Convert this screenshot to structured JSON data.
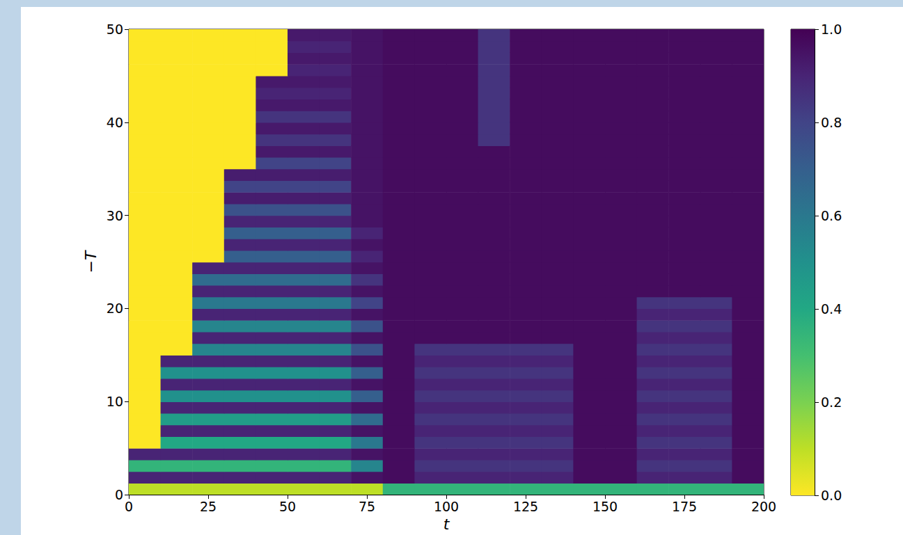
{
  "chart_data": {
    "type": "heatmap",
    "x_label": "t",
    "y_label": "−T",
    "x": [
      5,
      15,
      25,
      35,
      45,
      55,
      65,
      75,
      85,
      95,
      105,
      115,
      125,
      135,
      145,
      155,
      165,
      175,
      185,
      195
    ],
    "y": [
      0.625,
      1.875,
      3.125,
      4.375,
      5.625,
      6.875,
      8.125,
      9.375,
      10.625,
      11.875,
      13.125,
      14.375,
      15.625,
      16.875,
      18.125,
      19.375,
      20.625,
      21.875,
      23.125,
      24.375,
      25.625,
      26.875,
      28.125,
      29.375,
      30.625,
      31.875,
      33.125,
      34.375,
      35.625,
      36.875,
      38.125,
      39.375,
      40.625,
      41.875,
      43.125,
      44.375,
      45.625,
      46.875,
      48.125,
      49.375
    ],
    "values": [
      [
        0.1,
        0.1,
        0.1,
        0.1,
        0.1,
        0.1,
        0.1,
        0.1,
        0.35,
        0.35,
        0.35,
        0.35,
        0.35,
        0.35,
        0.35,
        0.35,
        0.35,
        0.35,
        0.35,
        0.35
      ],
      [
        0.9,
        0.9,
        0.9,
        0.9,
        0.9,
        0.9,
        0.9,
        0.95,
        0.97,
        0.9,
        0.9,
        0.9,
        0.9,
        0.9,
        0.97,
        0.97,
        0.9,
        0.9,
        0.9,
        0.97
      ],
      [
        0.35,
        0.35,
        0.35,
        0.35,
        0.35,
        0.35,
        0.35,
        0.55,
        0.97,
        0.85,
        0.85,
        0.85,
        0.85,
        0.85,
        0.97,
        0.97,
        0.85,
        0.85,
        0.85,
        0.97
      ],
      [
        0.9,
        0.9,
        0.9,
        0.9,
        0.9,
        0.9,
        0.9,
        0.95,
        0.97,
        0.9,
        0.9,
        0.9,
        0.9,
        0.9,
        0.97,
        0.97,
        0.9,
        0.9,
        0.9,
        0.97
      ],
      [
        0,
        0.4,
        0.4,
        0.4,
        0.4,
        0.4,
        0.4,
        0.6,
        0.97,
        0.85,
        0.85,
        0.85,
        0.85,
        0.85,
        0.97,
        0.97,
        0.85,
        0.85,
        0.85,
        0.97
      ],
      [
        0,
        0.9,
        0.9,
        0.9,
        0.9,
        0.9,
        0.9,
        0.95,
        0.97,
        0.9,
        0.9,
        0.9,
        0.9,
        0.9,
        0.97,
        0.97,
        0.9,
        0.9,
        0.9,
        0.97
      ],
      [
        0,
        0.45,
        0.45,
        0.45,
        0.45,
        0.45,
        0.45,
        0.65,
        0.97,
        0.85,
        0.85,
        0.85,
        0.85,
        0.85,
        0.97,
        0.97,
        0.85,
        0.85,
        0.85,
        0.97
      ],
      [
        0,
        0.9,
        0.9,
        0.9,
        0.9,
        0.9,
        0.9,
        0.95,
        0.97,
        0.9,
        0.9,
        0.9,
        0.9,
        0.9,
        0.97,
        0.97,
        0.9,
        0.9,
        0.9,
        0.97
      ],
      [
        0,
        0.5,
        0.5,
        0.5,
        0.5,
        0.5,
        0.5,
        0.7,
        0.97,
        0.85,
        0.85,
        0.85,
        0.85,
        0.85,
        0.97,
        0.97,
        0.85,
        0.85,
        0.85,
        0.97
      ],
      [
        0,
        0.9,
        0.9,
        0.9,
        0.9,
        0.9,
        0.9,
        0.95,
        0.97,
        0.9,
        0.9,
        0.9,
        0.9,
        0.9,
        0.97,
        0.97,
        0.9,
        0.9,
        0.9,
        0.97
      ],
      [
        0,
        0.5,
        0.5,
        0.5,
        0.5,
        0.5,
        0.5,
        0.7,
        0.97,
        0.85,
        0.85,
        0.85,
        0.85,
        0.85,
        0.97,
        0.97,
        0.85,
        0.85,
        0.85,
        0.97
      ],
      [
        0,
        0.9,
        0.9,
        0.9,
        0.9,
        0.9,
        0.9,
        0.95,
        0.97,
        0.9,
        0.9,
        0.9,
        0.9,
        0.9,
        0.97,
        0.97,
        0.9,
        0.9,
        0.9,
        0.97
      ],
      [
        0,
        0,
        0.55,
        0.55,
        0.55,
        0.55,
        0.55,
        0.75,
        0.97,
        0.85,
        0.85,
        0.85,
        0.85,
        0.85,
        0.97,
        0.97,
        0.85,
        0.85,
        0.85,
        0.97
      ],
      [
        0,
        0,
        0.9,
        0.9,
        0.9,
        0.9,
        0.9,
        0.95,
        0.97,
        0.97,
        0.97,
        0.97,
        0.97,
        0.97,
        0.97,
        0.97,
        0.9,
        0.9,
        0.9,
        0.97
      ],
      [
        0,
        0,
        0.55,
        0.55,
        0.55,
        0.55,
        0.55,
        0.75,
        0.97,
        0.97,
        0.97,
        0.97,
        0.97,
        0.97,
        0.97,
        0.97,
        0.85,
        0.85,
        0.85,
        0.97
      ],
      [
        0,
        0,
        0.9,
        0.9,
        0.9,
        0.9,
        0.9,
        0.95,
        0.97,
        0.97,
        0.97,
        0.97,
        0.97,
        0.97,
        0.97,
        0.97,
        0.9,
        0.9,
        0.9,
        0.97
      ],
      [
        0,
        0,
        0.6,
        0.6,
        0.6,
        0.6,
        0.6,
        0.8,
        0.97,
        0.97,
        0.97,
        0.97,
        0.97,
        0.97,
        0.97,
        0.97,
        0.85,
        0.85,
        0.85,
        0.97
      ],
      [
        0,
        0,
        0.9,
        0.9,
        0.9,
        0.9,
        0.9,
        0.95,
        0.97,
        0.97,
        0.97,
        0.97,
        0.97,
        0.97,
        0.97,
        0.97,
        0.97,
        0.97,
        0.97,
        0.97
      ],
      [
        0,
        0,
        0.65,
        0.65,
        0.65,
        0.65,
        0.65,
        0.85,
        0.97,
        0.97,
        0.97,
        0.97,
        0.97,
        0.97,
        0.97,
        0.97,
        0.97,
        0.97,
        0.97,
        0.97
      ],
      [
        0,
        0,
        0.9,
        0.9,
        0.9,
        0.9,
        0.9,
        0.95,
        0.97,
        0.97,
        0.97,
        0.97,
        0.97,
        0.97,
        0.97,
        0.97,
        0.97,
        0.97,
        0.97,
        0.97
      ],
      [
        0,
        0,
        0,
        0.7,
        0.7,
        0.7,
        0.7,
        0.9,
        0.97,
        0.97,
        0.97,
        0.97,
        0.97,
        0.97,
        0.97,
        0.97,
        0.97,
        0.97,
        0.97,
        0.97
      ],
      [
        0,
        0,
        0,
        0.9,
        0.9,
        0.9,
        0.9,
        0.95,
        0.97,
        0.97,
        0.97,
        0.97,
        0.97,
        0.97,
        0.97,
        0.97,
        0.97,
        0.97,
        0.97,
        0.97
      ],
      [
        0,
        0,
        0,
        0.7,
        0.7,
        0.7,
        0.7,
        0.9,
        0.97,
        0.97,
        0.97,
        0.97,
        0.97,
        0.97,
        0.97,
        0.97,
        0.97,
        0.97,
        0.97,
        0.97
      ],
      [
        0,
        0,
        0,
        0.9,
        0.9,
        0.9,
        0.9,
        0.95,
        0.97,
        0.97,
        0.97,
        0.97,
        0.97,
        0.97,
        0.97,
        0.97,
        0.97,
        0.97,
        0.97,
        0.97
      ],
      [
        0,
        0,
        0,
        0.75,
        0.75,
        0.75,
        0.75,
        0.95,
        0.97,
        0.97,
        0.97,
        0.97,
        0.97,
        0.97,
        0.97,
        0.97,
        0.97,
        0.97,
        0.97,
        0.97
      ],
      [
        0,
        0,
        0,
        0.92,
        0.92,
        0.92,
        0.92,
        0.95,
        0.97,
        0.97,
        0.97,
        0.97,
        0.97,
        0.97,
        0.97,
        0.97,
        0.97,
        0.97,
        0.97,
        0.97
      ],
      [
        0,
        0,
        0,
        0.8,
        0.8,
        0.8,
        0.8,
        0.95,
        0.97,
        0.97,
        0.97,
        0.97,
        0.97,
        0.97,
        0.97,
        0.97,
        0.97,
        0.97,
        0.97,
        0.97
      ],
      [
        0,
        0,
        0,
        0.92,
        0.92,
        0.92,
        0.92,
        0.95,
        0.97,
        0.97,
        0.97,
        0.97,
        0.97,
        0.97,
        0.97,
        0.97,
        0.97,
        0.97,
        0.97,
        0.97
      ],
      [
        0,
        0,
        0,
        0,
        0.8,
        0.8,
        0.8,
        0.95,
        0.97,
        0.97,
        0.97,
        0.97,
        0.97,
        0.97,
        0.97,
        0.97,
        0.97,
        0.97,
        0.97,
        0.97
      ],
      [
        0,
        0,
        0,
        0,
        0.93,
        0.93,
        0.93,
        0.95,
        0.97,
        0.97,
        0.97,
        0.97,
        0.97,
        0.97,
        0.97,
        0.97,
        0.97,
        0.97,
        0.97,
        0.97
      ],
      [
        0,
        0,
        0,
        0,
        0.85,
        0.85,
        0.85,
        0.95,
        0.97,
        0.97,
        0.97,
        0.85,
        0.97,
        0.97,
        0.97,
        0.97,
        0.97,
        0.97,
        0.97,
        0.97
      ],
      [
        0,
        0,
        0,
        0,
        0.93,
        0.93,
        0.93,
        0.95,
        0.97,
        0.97,
        0.97,
        0.85,
        0.97,
        0.97,
        0.97,
        0.97,
        0.97,
        0.97,
        0.97,
        0.97
      ],
      [
        0,
        0,
        0,
        0,
        0.85,
        0.85,
        0.85,
        0.95,
        0.97,
        0.97,
        0.97,
        0.85,
        0.97,
        0.97,
        0.97,
        0.97,
        0.97,
        0.97,
        0.97,
        0.97
      ],
      [
        0,
        0,
        0,
        0,
        0.93,
        0.93,
        0.93,
        0.95,
        0.97,
        0.97,
        0.97,
        0.85,
        0.97,
        0.97,
        0.97,
        0.97,
        0.97,
        0.97,
        0.97,
        0.97
      ],
      [
        0,
        0,
        0,
        0,
        0.9,
        0.9,
        0.9,
        0.95,
        0.97,
        0.97,
        0.97,
        0.85,
        0.97,
        0.97,
        0.97,
        0.97,
        0.97,
        0.97,
        0.97,
        0.97
      ],
      [
        0,
        0,
        0,
        0,
        0.93,
        0.93,
        0.93,
        0.95,
        0.97,
        0.97,
        0.97,
        0.85,
        0.97,
        0.97,
        0.97,
        0.97,
        0.97,
        0.97,
        0.97,
        0.97
      ],
      [
        0,
        0,
        0,
        0,
        0,
        0.9,
        0.9,
        0.95,
        0.97,
        0.97,
        0.97,
        0.85,
        0.97,
        0.97,
        0.97,
        0.97,
        0.97,
        0.97,
        0.97,
        0.97
      ],
      [
        0,
        0,
        0,
        0,
        0,
        0.93,
        0.93,
        0.95,
        0.97,
        0.97,
        0.97,
        0.85,
        0.97,
        0.97,
        0.97,
        0.97,
        0.97,
        0.97,
        0.97,
        0.97
      ],
      [
        0,
        0,
        0,
        0,
        0,
        0.9,
        0.9,
        0.95,
        0.97,
        0.97,
        0.97,
        0.85,
        0.97,
        0.97,
        0.97,
        0.97,
        0.97,
        0.97,
        0.97,
        0.97
      ],
      [
        0,
        0,
        0,
        0,
        0,
        0.93,
        0.93,
        0.95,
        0.97,
        0.97,
        0.97,
        0.85,
        0.97,
        0.97,
        0.97,
        0.97,
        0.97,
        0.97,
        0.97,
        0.97
      ]
    ],
    "xlim": [
      0,
      200
    ],
    "ylim": [
      0,
      50
    ],
    "xticks": [
      0,
      25,
      50,
      75,
      100,
      125,
      150,
      175,
      200
    ],
    "yticks": [
      0,
      10,
      20,
      30,
      40,
      50
    ],
    "colorbar": {
      "range": [
        0,
        1
      ],
      "ticks": [
        {
          "value": 0,
          "label": "0.0"
        },
        {
          "value": 0.2,
          "label": "0.2"
        },
        {
          "value": 0.4,
          "label": "0.4"
        },
        {
          "value": 0.6,
          "label": "0.6"
        },
        {
          "value": 0.8,
          "label": "0.8"
        },
        {
          "value": 1,
          "label": "1.0"
        }
      ]
    }
  }
}
